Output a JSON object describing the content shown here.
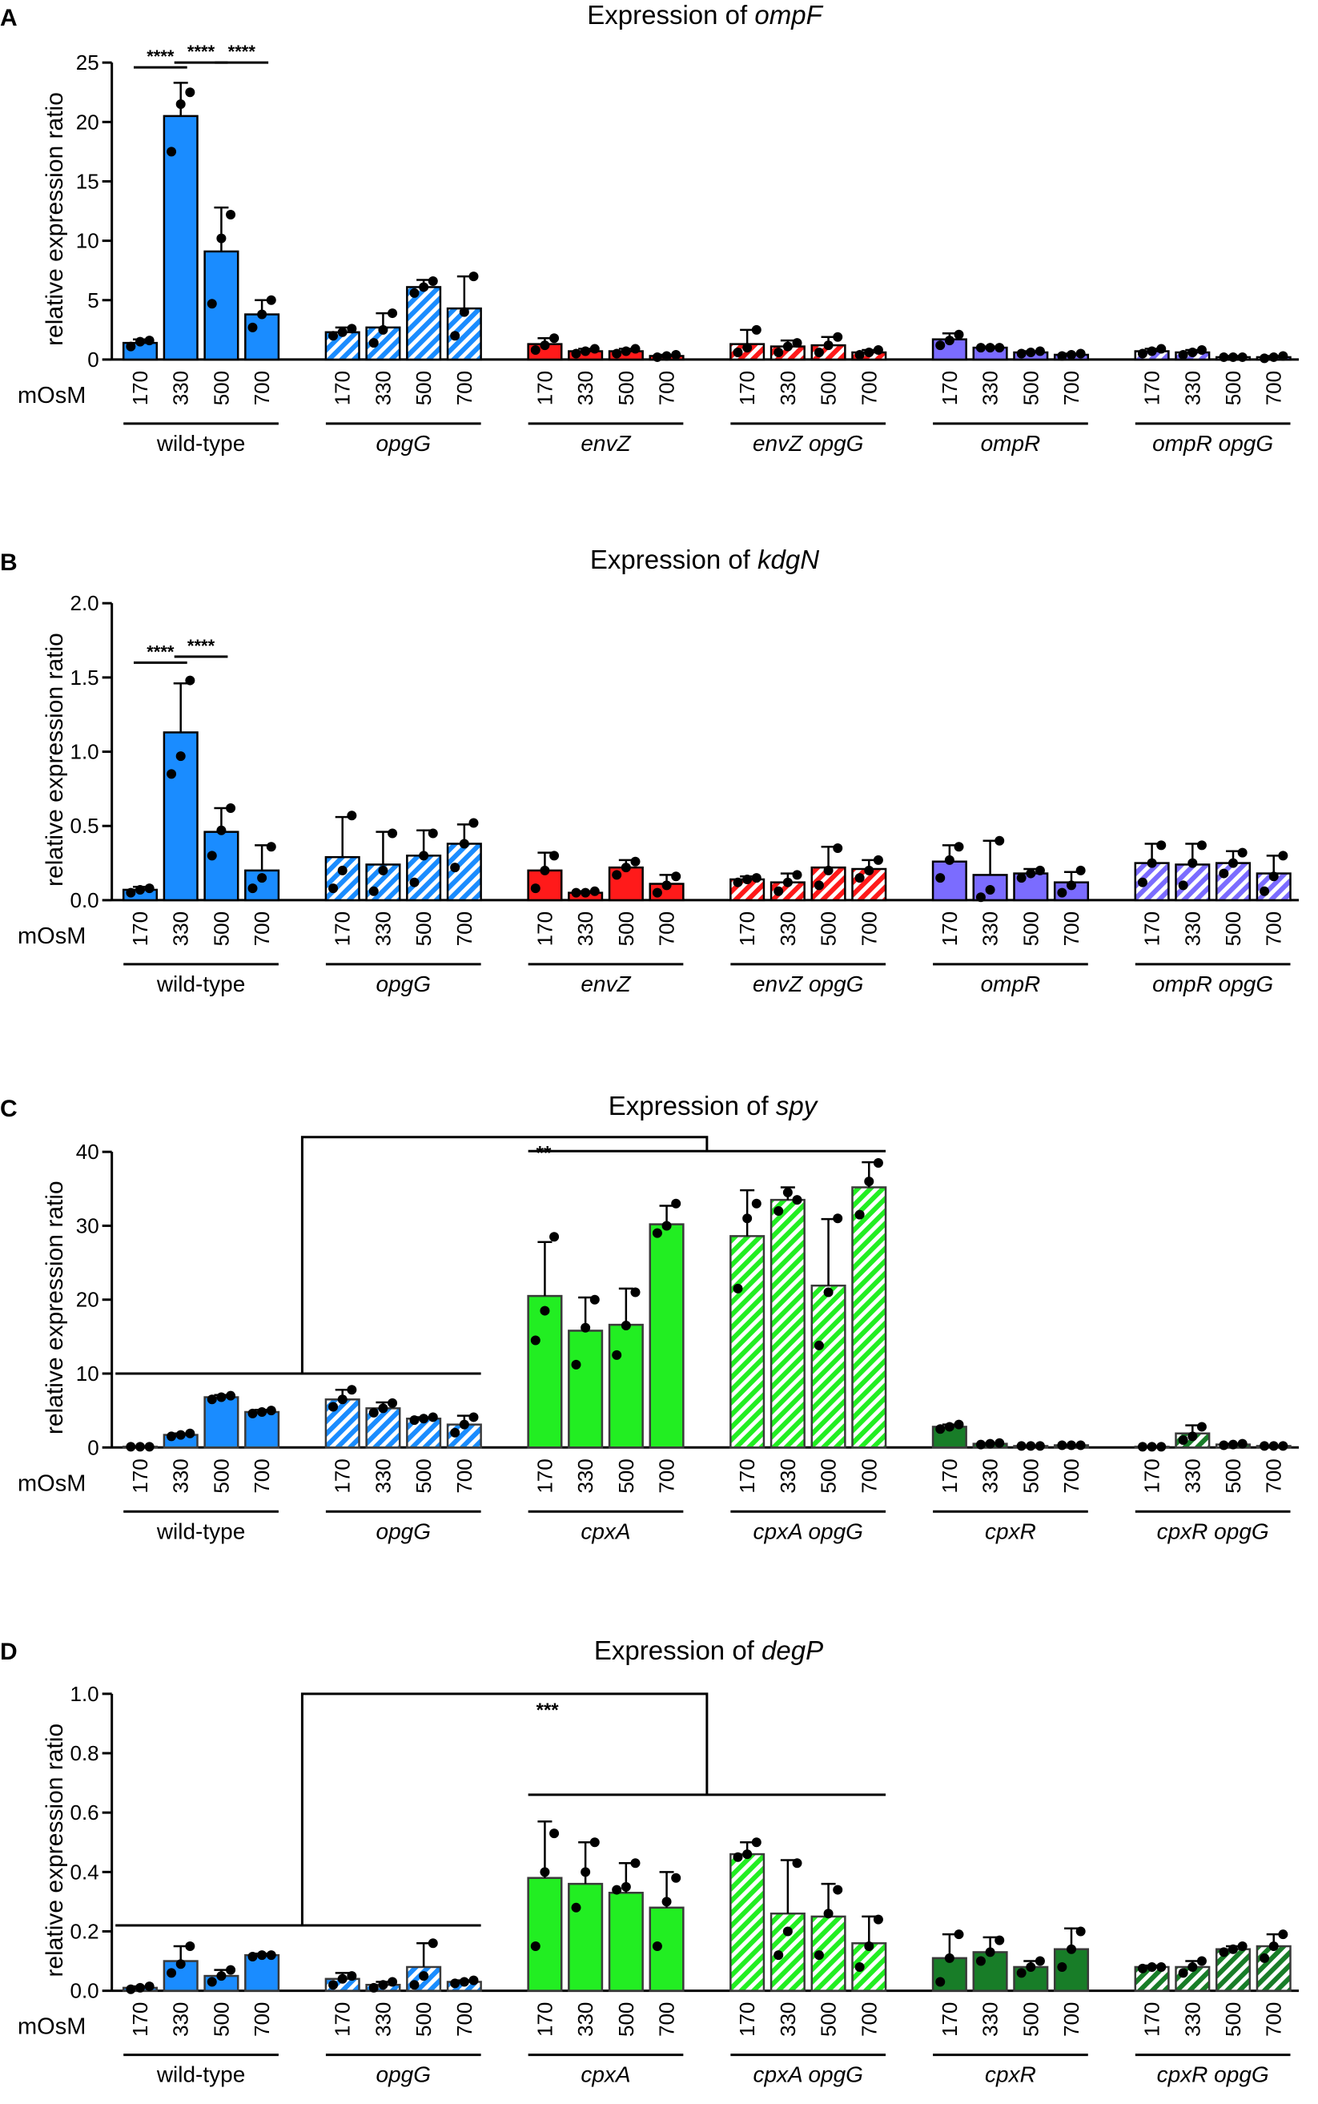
{
  "figure": {
    "xaxis_label": "mOsM",
    "ylabel": "relative expression ratio",
    "osmolarities": [
      "170",
      "330",
      "500",
      "700"
    ]
  },
  "colors": {
    "wt": "#1a8cff",
    "env": "#ff1a1a",
    "omp": "#7b6cff",
    "cpxA": "#22ee22",
    "cpxR": "#187d28",
    "edge": "#000000",
    "edge_light": "#333333"
  },
  "chart_data": [
    {
      "type": "bar",
      "panel": "A",
      "title_prefix": "Expression of ",
      "gene": "ompF",
      "ylim": [
        0,
        25
      ],
      "yticks": [
        0,
        5,
        10,
        15,
        20,
        25
      ],
      "ytick_labels": [
        "0",
        "5",
        "10",
        "15",
        "20",
        "25"
      ],
      "groups": [
        {
          "name": "wild-type",
          "italic": false,
          "color": "wt",
          "hatch": false,
          "values": [
            1.4,
            20.5,
            9.1,
            3.8
          ],
          "errors": [
            0.3,
            2.8,
            3.7,
            1.2
          ],
          "points": [
            [
              1.1,
              1.5,
              1.6
            ],
            [
              17.5,
              21.5,
              22.5
            ],
            [
              4.7,
              10.2,
              12.2
            ],
            [
              2.7,
              3.8,
              5.0
            ]
          ]
        },
        {
          "name": "opgG",
          "italic": true,
          "color": "wt",
          "hatch": true,
          "values": [
            2.3,
            2.7,
            6.1,
            4.3
          ],
          "errors": [
            0.4,
            1.2,
            0.6,
            2.7
          ],
          "points": [
            [
              2.0,
              2.3,
              2.6
            ],
            [
              1.4,
              2.5,
              3.9
            ],
            [
              5.6,
              6.1,
              6.6
            ],
            [
              2.0,
              4.0,
              7.0
            ]
          ]
        },
        {
          "name": "envZ",
          "italic": false,
          "color": "env",
          "hatch": false,
          "values": [
            1.3,
            0.7,
            0.7,
            0.3
          ],
          "errors": [
            0.5,
            0.2,
            0.2,
            0.1
          ],
          "points": [
            [
              0.8,
              1.2,
              1.8
            ],
            [
              0.5,
              0.7,
              0.9
            ],
            [
              0.5,
              0.7,
              0.9
            ],
            [
              0.2,
              0.3,
              0.4
            ]
          ]
        },
        {
          "name": "envZ opgG",
          "italic": false,
          "color": "env",
          "hatch": true,
          "values": [
            1.3,
            1.1,
            1.2,
            0.6
          ],
          "errors": [
            1.2,
            0.5,
            0.7,
            0.2
          ],
          "points": [
            [
              0.6,
              1.0,
              2.5
            ],
            [
              0.6,
              1.1,
              1.4
            ],
            [
              0.6,
              1.2,
              1.9
            ],
            [
              0.4,
              0.6,
              0.8
            ]
          ]
        },
        {
          "name": "ompR",
          "italic": true,
          "color": "omp",
          "hatch": false,
          "values": [
            1.7,
            1.0,
            0.6,
            0.4
          ],
          "errors": [
            0.5,
            0.1,
            0.1,
            0.1
          ],
          "points": [
            [
              1.2,
              1.6,
              2.1
            ],
            [
              1.0,
              1.0,
              1.0
            ],
            [
              0.5,
              0.6,
              0.7
            ],
            [
              0.3,
              0.4,
              0.5
            ]
          ]
        },
        {
          "name": "ompR opgG",
          "italic": true,
          "color": "omp",
          "hatch": true,
          "values": [
            0.7,
            0.6,
            0.2,
            0.2
          ],
          "errors": [
            0.2,
            0.2,
            0.1,
            0.1
          ],
          "points": [
            [
              0.5,
              0.7,
              0.9
            ],
            [
              0.4,
              0.6,
              0.8
            ],
            [
              0.2,
              0.2,
              0.2
            ],
            [
              0.1,
              0.2,
              0.3
            ]
          ]
        }
      ],
      "significance": [
        {
          "label": "****",
          "from": 0,
          "to": 1,
          "y": 24.6
        },
        {
          "label": "****",
          "from": 1,
          "to": 2,
          "y": 25.0
        },
        {
          "label": "****",
          "from": 2,
          "to": 3,
          "y": 25.0
        }
      ]
    },
    {
      "type": "bar",
      "panel": "B",
      "title_prefix": "Expression of ",
      "gene": "kdgN",
      "ylim": [
        0,
        2.0
      ],
      "yticks": [
        0,
        0.5,
        1.0,
        1.5,
        2.0
      ],
      "ytick_labels": [
        "0.0",
        "0.5",
        "1.0",
        "1.5",
        "2.0"
      ],
      "groups": [
        {
          "name": "wild-type",
          "italic": false,
          "color": "wt",
          "hatch": false,
          "values": [
            0.07,
            1.13,
            0.46,
            0.2
          ],
          "errors": [
            0.02,
            0.33,
            0.16,
            0.17
          ],
          "points": [
            [
              0.05,
              0.07,
              0.08
            ],
            [
              0.85,
              0.97,
              1.48
            ],
            [
              0.3,
              0.47,
              0.62
            ],
            [
              0.08,
              0.15,
              0.36
            ]
          ]
        },
        {
          "name": "opgG",
          "italic": true,
          "color": "wt",
          "hatch": true,
          "values": [
            0.29,
            0.24,
            0.3,
            0.38
          ],
          "errors": [
            0.27,
            0.22,
            0.17,
            0.13
          ],
          "points": [
            [
              0.08,
              0.2,
              0.57
            ],
            [
              0.06,
              0.2,
              0.45
            ],
            [
              0.12,
              0.3,
              0.45
            ],
            [
              0.22,
              0.38,
              0.52
            ]
          ]
        },
        {
          "name": "envZ",
          "italic": false,
          "color": "env",
          "hatch": false,
          "values": [
            0.2,
            0.05,
            0.22,
            0.11
          ],
          "errors": [
            0.12,
            0.01,
            0.05,
            0.06
          ],
          "points": [
            [
              0.08,
              0.2,
              0.3
            ],
            [
              0.05,
              0.05,
              0.06
            ],
            [
              0.17,
              0.22,
              0.26
            ],
            [
              0.05,
              0.1,
              0.16
            ]
          ]
        },
        {
          "name": "envZ opgG",
          "italic": true,
          "color": "env",
          "hatch": true,
          "values": [
            0.14,
            0.12,
            0.22,
            0.21
          ],
          "errors": [
            0.02,
            0.06,
            0.14,
            0.06
          ],
          "points": [
            [
              0.12,
              0.14,
              0.15
            ],
            [
              0.06,
              0.12,
              0.17
            ],
            [
              0.1,
              0.2,
              0.35
            ],
            [
              0.15,
              0.2,
              0.27
            ]
          ]
        },
        {
          "name": "ompR",
          "italic": true,
          "color": "omp",
          "hatch": false,
          "values": [
            0.26,
            0.17,
            0.18,
            0.12
          ],
          "errors": [
            0.11,
            0.23,
            0.03,
            0.07
          ],
          "points": [
            [
              0.15,
              0.27,
              0.36
            ],
            [
              0.02,
              0.07,
              0.4
            ],
            [
              0.15,
              0.18,
              0.2
            ],
            [
              0.05,
              0.1,
              0.2
            ]
          ]
        },
        {
          "name": "ompR opgG",
          "italic": true,
          "color": "omp",
          "hatch": true,
          "values": [
            0.25,
            0.24,
            0.25,
            0.18
          ],
          "errors": [
            0.13,
            0.14,
            0.08,
            0.12
          ],
          "points": [
            [
              0.12,
              0.25,
              0.37
            ],
            [
              0.1,
              0.25,
              0.37
            ],
            [
              0.18,
              0.25,
              0.32
            ],
            [
              0.06,
              0.16,
              0.3
            ]
          ]
        }
      ],
      "significance": [
        {
          "label": "****",
          "from": 0,
          "to": 1,
          "y": 1.6
        },
        {
          "label": "****",
          "from": 1,
          "to": 2,
          "y": 1.64
        }
      ]
    },
    {
      "type": "bar",
      "panel": "C",
      "title_prefix": "Expression of ",
      "gene": "spy",
      "ylim": [
        0,
        40
      ],
      "yticks": [
        0,
        10,
        20,
        30,
        40
      ],
      "ytick_labels": [
        "0",
        "10",
        "20",
        "30",
        "40"
      ],
      "groups": [
        {
          "name": "wild-type",
          "italic": false,
          "color": "wt",
          "hatch": false,
          "values": [
            0.1,
            1.7,
            6.8,
            4.8
          ],
          "errors": [
            0.05,
            0.2,
            0.3,
            0.3
          ],
          "points": [
            [
              0.1,
              0.1,
              0.1
            ],
            [
              1.5,
              1.7,
              1.9
            ],
            [
              6.5,
              6.8,
              7.0
            ],
            [
              4.6,
              4.8,
              5.0
            ]
          ]
        },
        {
          "name": "opgG",
          "italic": true,
          "color": "wt",
          "hatch": true,
          "values": [
            6.5,
            5.3,
            3.9,
            3.1
          ],
          "errors": [
            1.3,
            0.8,
            0.2,
            1.2
          ],
          "points": [
            [
              5.5,
              6.5,
              7.8
            ],
            [
              4.7,
              5.3,
              6.0
            ],
            [
              3.7,
              3.9,
              4.1
            ],
            [
              2.0,
              3.1,
              4.1
            ]
          ]
        },
        {
          "name": "cpxA",
          "italic": true,
          "color": "cpxA",
          "hatch": false,
          "values": [
            20.5,
            15.8,
            16.6,
            30.2
          ],
          "errors": [
            7.3,
            4.5,
            4.9,
            2.5
          ],
          "points": [
            [
              14.5,
              18.5,
              28.5
            ],
            [
              11.2,
              16.2,
              20.0
            ],
            [
              12.5,
              16.5,
              21.0
            ],
            [
              29.0,
              30.0,
              33.0
            ]
          ]
        },
        {
          "name": "cpxA opgG",
          "italic": true,
          "color": "cpxA",
          "hatch": true,
          "values": [
            28.6,
            33.5,
            21.9,
            35.2
          ],
          "errors": [
            6.2,
            1.7,
            9.0,
            3.4
          ],
          "points": [
            [
              21.5,
              31.0,
              33.0
            ],
            [
              32.0,
              34.5,
              33.5
            ],
            [
              13.8,
              21.0,
              31.0
            ],
            [
              31.5,
              36.0,
              38.5
            ]
          ]
        },
        {
          "name": "cpxR",
          "italic": true,
          "color": "cpxR",
          "hatch": false,
          "values": [
            2.8,
            0.5,
            0.2,
            0.3
          ],
          "errors": [
            0.3,
            0.1,
            0.05,
            0.05
          ],
          "points": [
            [
              2.5,
              2.8,
              3.1
            ],
            [
              0.4,
              0.5,
              0.6
            ],
            [
              0.2,
              0.2,
              0.2
            ],
            [
              0.3,
              0.3,
              0.3
            ]
          ]
        },
        {
          "name": "cpxR opgG",
          "italic": true,
          "color": "cpxR",
          "hatch": true,
          "values": [
            0.1,
            1.9,
            0.4,
            0.2
          ],
          "errors": [
            0.05,
            1.1,
            0.1,
            0.05
          ],
          "points": [
            [
              0.1,
              0.1,
              0.1
            ],
            [
              1.0,
              1.5,
              2.8
            ],
            [
              0.3,
              0.4,
              0.5
            ],
            [
              0.2,
              0.2,
              0.2
            ]
          ]
        }
      ],
      "bracket": {
        "label": "**",
        "low_y": 10,
        "high_y": 40.1,
        "peak_y": 42.0
      }
    },
    {
      "type": "bar",
      "panel": "D",
      "title_prefix": "Expression of ",
      "gene": "degP",
      "ylim": [
        0,
        1.0
      ],
      "yticks": [
        0,
        0.2,
        0.4,
        0.6,
        0.8,
        1.0
      ],
      "ytick_labels": [
        "0.0",
        "0.2",
        "0.4",
        "0.6",
        "0.8",
        "1.0"
      ],
      "groups": [
        {
          "name": "wild-type",
          "italic": false,
          "color": "wt",
          "hatch": false,
          "values": [
            0.01,
            0.1,
            0.05,
            0.12
          ],
          "errors": [
            0.005,
            0.05,
            0.02,
            0.005
          ],
          "points": [
            [
              0.005,
              0.01,
              0.015
            ],
            [
              0.06,
              0.09,
              0.15
            ],
            [
              0.03,
              0.05,
              0.07
            ],
            [
              0.115,
              0.12,
              0.12
            ]
          ]
        },
        {
          "name": "opgG",
          "italic": true,
          "color": "wt",
          "hatch": true,
          "values": [
            0.04,
            0.02,
            0.08,
            0.03
          ],
          "errors": [
            0.02,
            0.01,
            0.08,
            0.005
          ],
          "points": [
            [
              0.02,
              0.04,
              0.05
            ],
            [
              0.01,
              0.02,
              0.03
            ],
            [
              0.02,
              0.05,
              0.16
            ],
            [
              0.025,
              0.03,
              0.035
            ]
          ]
        },
        {
          "name": "cpxA",
          "italic": true,
          "color": "cpxA",
          "hatch": false,
          "values": [
            0.38,
            0.36,
            0.33,
            0.28
          ],
          "errors": [
            0.19,
            0.14,
            0.1,
            0.12
          ],
          "points": [
            [
              0.15,
              0.4,
              0.53
            ],
            [
              0.28,
              0.4,
              0.5
            ],
            [
              0.34,
              0.35,
              0.43
            ],
            [
              0.15,
              0.3,
              0.38
            ]
          ]
        },
        {
          "name": "cpxA opgG",
          "italic": true,
          "color": "cpxA",
          "hatch": true,
          "values": [
            0.46,
            0.26,
            0.25,
            0.16
          ],
          "errors": [
            0.04,
            0.18,
            0.11,
            0.09
          ],
          "points": [
            [
              0.45,
              0.46,
              0.5
            ],
            [
              0.12,
              0.2,
              0.43
            ],
            [
              0.12,
              0.26,
              0.34
            ],
            [
              0.08,
              0.15,
              0.24
            ]
          ]
        },
        {
          "name": "cpxR",
          "italic": true,
          "color": "cpxR",
          "hatch": false,
          "values": [
            0.11,
            0.13,
            0.08,
            0.14
          ],
          "errors": [
            0.08,
            0.05,
            0.02,
            0.07
          ],
          "points": [
            [
              0.03,
              0.11,
              0.19
            ],
            [
              0.1,
              0.13,
              0.17
            ],
            [
              0.06,
              0.08,
              0.1
            ],
            [
              0.08,
              0.14,
              0.2
            ]
          ]
        },
        {
          "name": "cpxR opgG",
          "italic": true,
          "color": "cpxR",
          "hatch": true,
          "values": [
            0.08,
            0.08,
            0.14,
            0.15
          ],
          "errors": [
            0.005,
            0.02,
            0.01,
            0.04
          ],
          "points": [
            [
              0.075,
              0.08,
              0.08
            ],
            [
              0.06,
              0.08,
              0.1
            ],
            [
              0.13,
              0.14,
              0.15
            ],
            [
              0.11,
              0.15,
              0.19
            ]
          ]
        }
      ],
      "bracket": {
        "label": "***",
        "low_y": 0.22,
        "high_y": 0.66,
        "peak_y": 1.0
      }
    }
  ]
}
